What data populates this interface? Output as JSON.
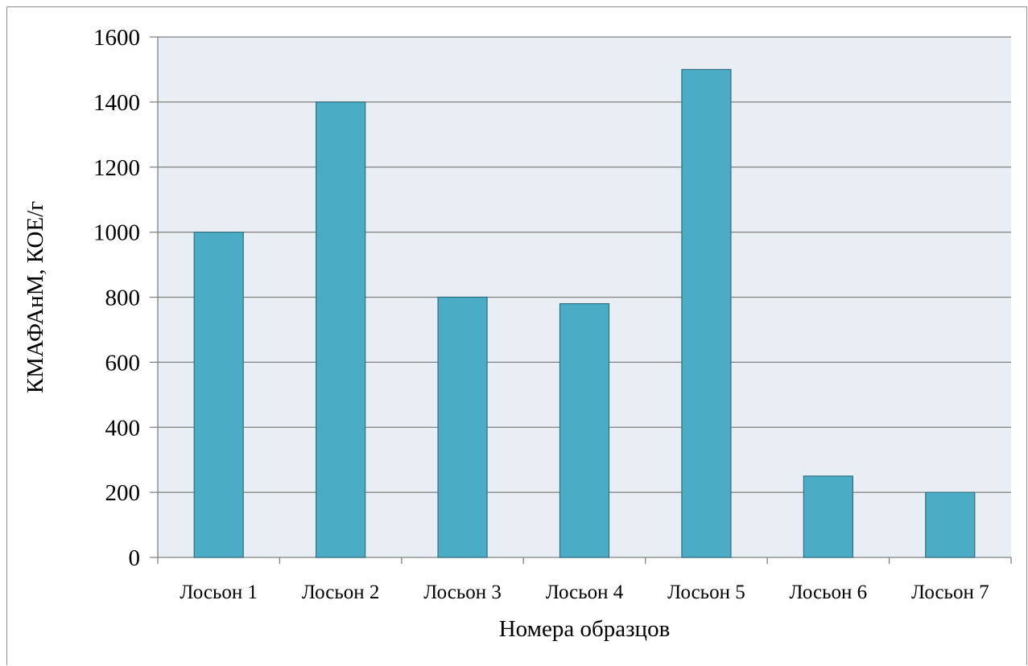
{
  "chart_data": {
    "type": "bar",
    "title": "",
    "xlabel": "Номера образцов",
    "ylabel": "КМАФАнМ, КОЕ/г",
    "categories": [
      "Лосьон 1",
      "Лосьон 2",
      "Лосьон 3",
      "Лосьон 4",
      "Лосьон 5",
      "Лосьон 6",
      "Лосьон 7"
    ],
    "values": [
      1000,
      1400,
      800,
      780,
      1500,
      250,
      200
    ],
    "ylim": [
      0,
      1600
    ],
    "yticks": [
      0,
      200,
      400,
      600,
      800,
      1000,
      1200,
      1400,
      1600
    ],
    "grid": true,
    "legend": "none",
    "colors": {
      "bar_fill": "#4BACC6",
      "bar_stroke": "#2E6F80",
      "plot_background": "#E8EEF3",
      "gridline": "#808080"
    }
  }
}
